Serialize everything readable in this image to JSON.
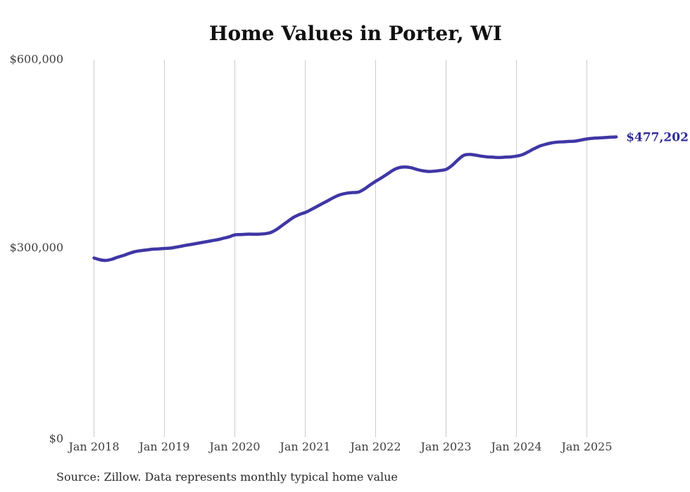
{
  "source_note": "Source: Zillow. Data represents monthly typical home value",
  "colors": {
    "line": "#3f37a5",
    "annotation": "#2f2c98",
    "grid": "#cccccc",
    "tick_text": "#3f3f3f",
    "title_text": "#111111",
    "source_text": "#2b2b2b",
    "background": "#ffffff"
  },
  "chart_data": {
    "type": "line",
    "title": "Home Values in Porter, WI",
    "series_name": "Monthly typical home value",
    "x_unit": "month",
    "grid": "vertical-only",
    "legend": "none",
    "ylim": [
      0,
      600000
    ],
    "end_label": "$477,202",
    "end_value": 477202,
    "yticks": [
      {
        "value": 600000,
        "label": "$600,000"
      },
      {
        "value": 300000,
        "label": "$300,000"
      },
      {
        "value": 0,
        "label": "$0"
      }
    ],
    "xticks": [
      {
        "x": "2018-01",
        "label": "Jan 2018"
      },
      {
        "x": "2019-01",
        "label": "Jan 2019"
      },
      {
        "x": "2020-01",
        "label": "Jan 2020"
      },
      {
        "x": "2021-01",
        "label": "Jan 2021"
      },
      {
        "x": "2022-01",
        "label": "Jan 2022"
      },
      {
        "x": "2023-01",
        "label": "Jan 2023"
      },
      {
        "x": "2024-01",
        "label": "Jan 2024"
      },
      {
        "x": "2025-01",
        "label": "Jan 2025"
      }
    ],
    "x": [
      "2018-01",
      "2018-02",
      "2018-03",
      "2018-04",
      "2018-05",
      "2018-06",
      "2018-07",
      "2018-08",
      "2018-09",
      "2018-10",
      "2018-11",
      "2018-12",
      "2019-01",
      "2019-02",
      "2019-03",
      "2019-04",
      "2019-05",
      "2019-06",
      "2019-07",
      "2019-08",
      "2019-09",
      "2019-10",
      "2019-11",
      "2019-12",
      "2020-01",
      "2020-02",
      "2020-03",
      "2020-04",
      "2020-05",
      "2020-06",
      "2020-07",
      "2020-08",
      "2020-09",
      "2020-10",
      "2020-11",
      "2020-12",
      "2021-01",
      "2021-02",
      "2021-03",
      "2021-04",
      "2021-05",
      "2021-06",
      "2021-07",
      "2021-08",
      "2021-09",
      "2021-10",
      "2021-11",
      "2021-12",
      "2022-01",
      "2022-02",
      "2022-03",
      "2022-04",
      "2022-05",
      "2022-06",
      "2022-07",
      "2022-08",
      "2022-09",
      "2022-10",
      "2022-11",
      "2022-12",
      "2023-01",
      "2023-02",
      "2023-03",
      "2023-04",
      "2023-05",
      "2023-06",
      "2023-07",
      "2023-08",
      "2023-09",
      "2023-10",
      "2023-11",
      "2023-12",
      "2024-01",
      "2024-02",
      "2024-03",
      "2024-04",
      "2024-05",
      "2024-06",
      "2024-07",
      "2024-08",
      "2024-09",
      "2024-10",
      "2024-11",
      "2024-12",
      "2025-01",
      "2025-02",
      "2025-03",
      "2025-04",
      "2025-05",
      "2025-06"
    ],
    "values": [
      284300,
      281500,
      280400,
      282100,
      285400,
      288200,
      291600,
      294400,
      296000,
      297100,
      298300,
      298800,
      299400,
      300000,
      301600,
      303300,
      305000,
      306600,
      308300,
      310000,
      311700,
      313300,
      315600,
      317800,
      321100,
      321700,
      322200,
      322200,
      322200,
      322800,
      324500,
      329000,
      335700,
      342400,
      349000,
      353500,
      356800,
      361300,
      366300,
      371300,
      376300,
      381300,
      385200,
      387400,
      388500,
      389100,
      393600,
      400300,
      406400,
      412000,
      418100,
      424300,
      428200,
      429300,
      428200,
      425400,
      423200,
      422100,
      422600,
      423700,
      425400,
      431500,
      440400,
      447700,
      449300,
      448200,
      446600,
      445400,
      444900,
      444300,
      444900,
      445400,
      446600,
      448800,
      453300,
      458300,
      462700,
      465500,
      467700,
      468900,
      469400,
      470000,
      470500,
      472200,
      473900,
      475000,
      475500,
      476100,
      476700,
      477202
    ]
  }
}
